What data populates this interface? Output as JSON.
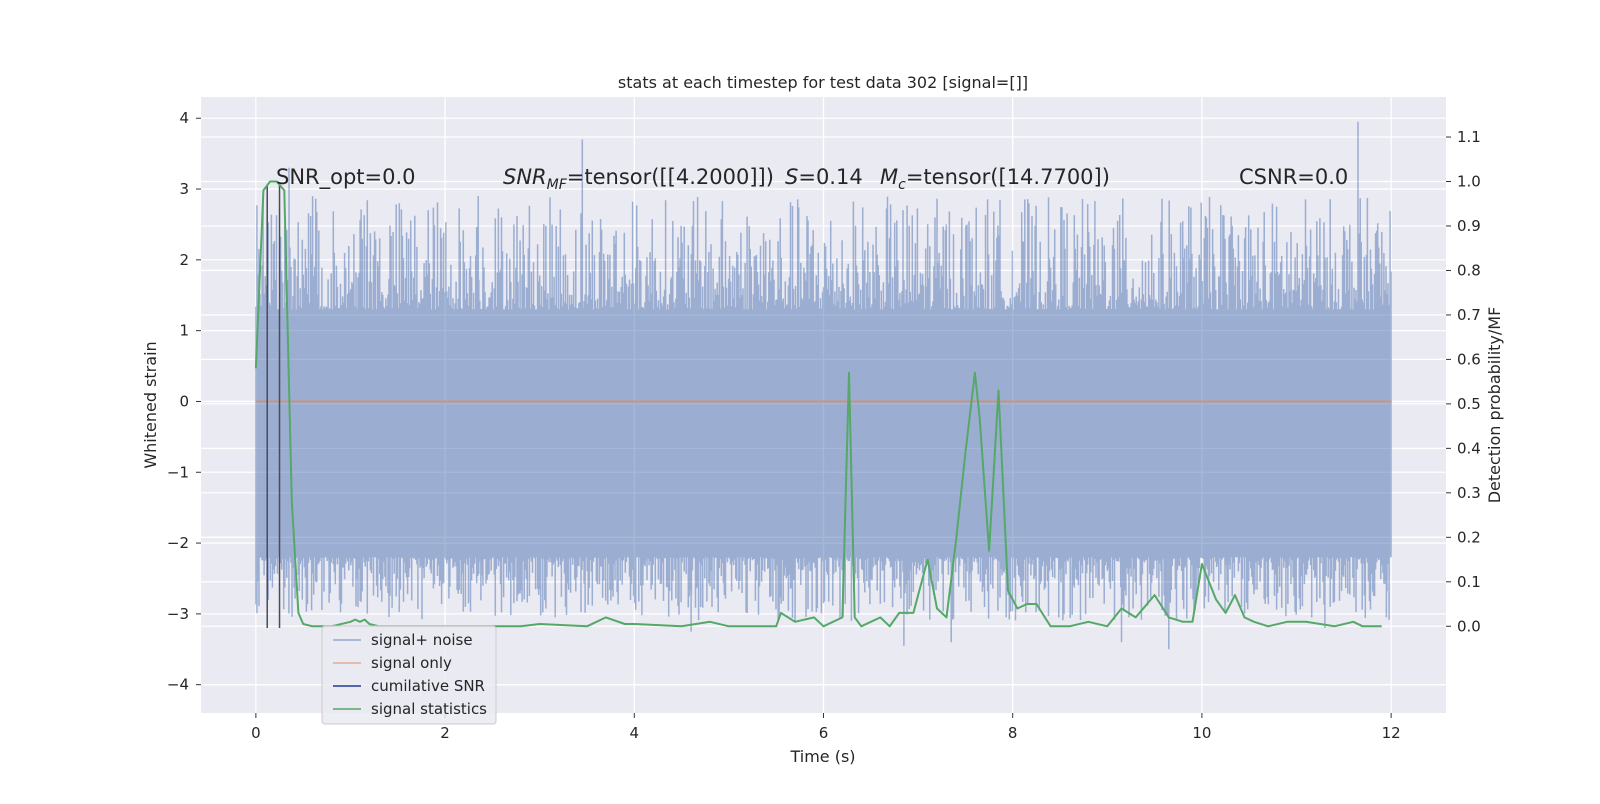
{
  "chart_data": {
    "type": "line",
    "title": "stats at each timestep for test data 302 [signal=[]]",
    "xlabel": "Time (s)",
    "ylabel_left": "Whitened strain",
    "ylabel_right": "Detection probability/MF",
    "xlim": [
      -0.58,
      12.58
    ],
    "ylim_left": [
      -4.4,
      4.3
    ],
    "ylim_right": [
      -0.195,
      1.19
    ],
    "xticks": [
      0,
      2,
      4,
      6,
      8,
      10,
      12
    ],
    "yticks_left": [
      -4,
      -3,
      -2,
      -1,
      0,
      1,
      2,
      3,
      4
    ],
    "yticks_right": [
      0.0,
      0.1,
      0.2,
      0.3,
      0.4,
      0.5,
      0.6,
      0.7,
      0.8,
      0.9,
      1.0,
      1.1
    ],
    "grid": true,
    "legend_position": "lower-left",
    "annotations": {
      "snr_opt": "SNR_opt=0.0",
      "snr_mf_prefix": "SNR",
      "snr_mf_sub": "MF",
      "snr_mf_value": "=tensor([[4.2000]])",
      "s_symbol": "S",
      "s_value": "=0.14",
      "mc_symbol": "M",
      "mc_sub": "c",
      "mc_value": "=tensor([14.7700])",
      "csnr": "CSNR=0.0"
    },
    "series": [
      {
        "name": "signal+ noise",
        "color": "#4c72b0",
        "axis": "left",
        "kind": "noise",
        "x_range": [
          0,
          12
        ],
        "band_min": [
          -2.2,
          1.3
        ],
        "band_max": [
          -3.1,
          2.9
        ],
        "spikes": [
          [
            0.35,
            3.3
          ],
          [
            3.45,
            3.7
          ],
          [
            11.65,
            3.95
          ],
          [
            0.6,
            2.9
          ],
          [
            2.35,
            2.9
          ],
          [
            4.6,
            -3.25
          ],
          [
            5.7,
            -3.1
          ],
          [
            6.85,
            -3.45
          ],
          [
            7.35,
            -3.4
          ],
          [
            9.15,
            -3.4
          ],
          [
            9.65,
            -3.5
          ],
          [
            11.3,
            -3.2
          ],
          [
            11.95,
            -3.05
          ]
        ]
      },
      {
        "name": "signal only",
        "color": "#dd8452",
        "axis": "left",
        "x": [
          0,
          12
        ],
        "y": [
          0,
          0
        ]
      },
      {
        "name": "cumilative SNR",
        "color": "#1f3a93",
        "axis": "left",
        "vlines": [
          0.12,
          0.25
        ],
        "ymin": -3.2,
        "ymax": 3.05
      },
      {
        "name": "signal statistics",
        "color": "#55a868",
        "axis": "right",
        "x": [
          0,
          0.08,
          0.15,
          0.22,
          0.3,
          0.38,
          0.45,
          0.5,
          0.6,
          0.8,
          1.0,
          1.05,
          1.1,
          1.15,
          1.2,
          1.3,
          1.5,
          2.0,
          2.5,
          2.8,
          3.0,
          3.5,
          3.7,
          3.9,
          4.0,
          4.5,
          4.8,
          5.0,
          5.5,
          5.55,
          5.7,
          5.9,
          6.0,
          6.2,
          6.27,
          6.33,
          6.4,
          6.6,
          6.7,
          6.8,
          6.95,
          7.1,
          7.2,
          7.3,
          7.4,
          7.5,
          7.6,
          7.65,
          7.75,
          7.85,
          7.95,
          8.05,
          8.15,
          8.25,
          8.4,
          8.6,
          8.8,
          9.0,
          9.15,
          9.3,
          9.5,
          9.65,
          9.8,
          9.9,
          10.0,
          10.15,
          10.25,
          10.35,
          10.45,
          10.55,
          10.7,
          10.9,
          11.1,
          11.4,
          11.6,
          11.7,
          11.9
        ],
        "y": [
          0.58,
          0.98,
          1.0,
          1.0,
          0.98,
          0.28,
          0.03,
          0.005,
          0.0,
          0.0,
          0.01,
          0.015,
          0.01,
          0.015,
          0.005,
          0.0,
          0.0,
          0.0,
          0.0,
          0.0,
          0.005,
          0.0,
          0.02,
          0.005,
          0.005,
          0.0,
          0.01,
          0.0,
          0.0,
          0.03,
          0.01,
          0.02,
          0.0,
          0.02,
          0.57,
          0.02,
          0.0,
          0.02,
          0.0,
          0.03,
          0.03,
          0.15,
          0.04,
          0.02,
          0.19,
          0.39,
          0.57,
          0.47,
          0.17,
          0.53,
          0.08,
          0.04,
          0.05,
          0.05,
          0.0,
          0.0,
          0.01,
          0.0,
          0.04,
          0.02,
          0.07,
          0.02,
          0.01,
          0.01,
          0.14,
          0.06,
          0.03,
          0.07,
          0.02,
          0.01,
          0.0,
          0.01,
          0.01,
          0.0,
          0.01,
          0.0,
          0.0
        ]
      }
    ]
  }
}
